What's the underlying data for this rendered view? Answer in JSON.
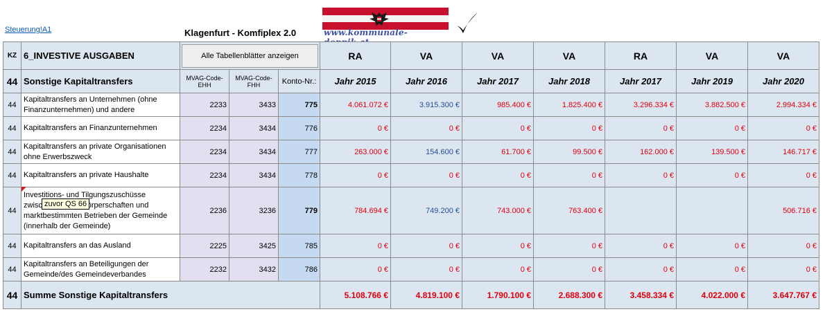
{
  "header": {
    "link": "Steuerung!A1",
    "title": "Klagenfurt - Komfiplex 2.0",
    "logo_text": "www.kommunale-doppik.at"
  },
  "table": {
    "kz_label": "KZ",
    "section_title": "6_INVESTIVE AUSGABEN",
    "show_all_button": "Alle Tabellenblätter anzeigen",
    "columns": [
      {
        "type": "RA",
        "year": "Jahr 2015"
      },
      {
        "type": "VA",
        "year": "Jahr 2016"
      },
      {
        "type": "VA",
        "year": "Jahr 2017"
      },
      {
        "type": "VA",
        "year": "Jahr 2018"
      },
      {
        "type": "RA",
        "year": "Jahr 2017"
      },
      {
        "type": "VA",
        "year": "Jahr 2019"
      },
      {
        "type": "VA",
        "year": "Jahr 2020"
      }
    ],
    "group_kz": "44",
    "group_title": "Sonstige Kapitaltransfers",
    "code_ehh_label": "MVAG-Code-EHH",
    "code_fhh_label": "MVAG-Code-FHH",
    "konto_label": "Konto-Nr.:",
    "rows": [
      {
        "kz": "44",
        "desc": "Kapitaltransfers an  Unternehmen (ohne Finanzunternehmen) und andere",
        "ehh": "2233",
        "fhh": "3433",
        "konto": "775",
        "values": [
          "4.061.072 €",
          "3.915.300 €",
          "985.400 €",
          "1.825.400 €",
          "3.296.334 €",
          "3.882.500 €",
          "2.994.334 €"
        ]
      },
      {
        "kz": "44",
        "desc": "Kapitaltransfers an Finanzunternehmen",
        "ehh": "2234",
        "fhh": "3434",
        "konto": "776",
        "values": [
          "0 €",
          "0 €",
          "0 €",
          "0 €",
          "0 €",
          "0 €",
          "0 €"
        ]
      },
      {
        "kz": "44",
        "desc": "Kapitaltransfers an private Organisationen ohne Erwerbszweck",
        "ehh": "2234",
        "fhh": "3434",
        "konto": "777",
        "values": [
          "263.000 €",
          "154.600 €",
          "61.700 €",
          "99.500 €",
          "162.000 €",
          "139.500 €",
          "146.717 €"
        ]
      },
      {
        "kz": "44",
        "desc": "Kapitaltransfers an private Haushalte",
        "ehh": "2234",
        "fhh": "3434",
        "konto": "778",
        "values": [
          "0 €",
          "0 €",
          "0 €",
          "0 €",
          "0 €",
          "0 €",
          "0 €"
        ]
      },
      {
        "kz": "44",
        "desc": "Investitions- und Tilgungszuschüsse zwischen Gebietskörperschaften und marktbestimmten Betrieben der Gemeinde (innerhalb der Gemeinde)",
        "ehh": "2236",
        "fhh": "3236",
        "konto": "779",
        "values": [
          "784.694 €",
          "749.200 €",
          "743.000 €",
          "763.400 €",
          "",
          "",
          "506.716 €"
        ]
      },
      {
        "kz": "44",
        "desc": "Kapitaltransfers an das Ausland",
        "ehh": "2225",
        "fhh": "3425",
        "konto": "785",
        "values": [
          "0 €",
          "0 €",
          "0 €",
          "0 €",
          "0 €",
          "0 €",
          "0 €"
        ]
      },
      {
        "kz": "44",
        "desc": "Kapitaltransfers an Beteiligungen der Gemeinde/des Gemeindeverbandes",
        "ehh": "2232",
        "fhh": "3432",
        "konto": "786",
        "values": [
          "0 €",
          "0 €",
          "0 €",
          "0 €",
          "0 €",
          "0 €",
          "0 €"
        ]
      }
    ],
    "sum": {
      "kz": "44",
      "label": "Summe Sonstige Kapitaltransfers",
      "values": [
        "5.108.766 €",
        "4.819.100 €",
        "1.790.100 €",
        "2.688.300 €",
        "3.458.334 €",
        "4.022.000 €",
        "3.647.767 €"
      ]
    }
  },
  "comment_tooltip": "zuvor QS 66",
  "colors": {
    "negative_red": "#e0000b",
    "value_blue": "#1f4e99",
    "header_fill": "#dce6f1",
    "code_fill": "#e4dff0",
    "konto_fill": "#c5d9f1"
  }
}
